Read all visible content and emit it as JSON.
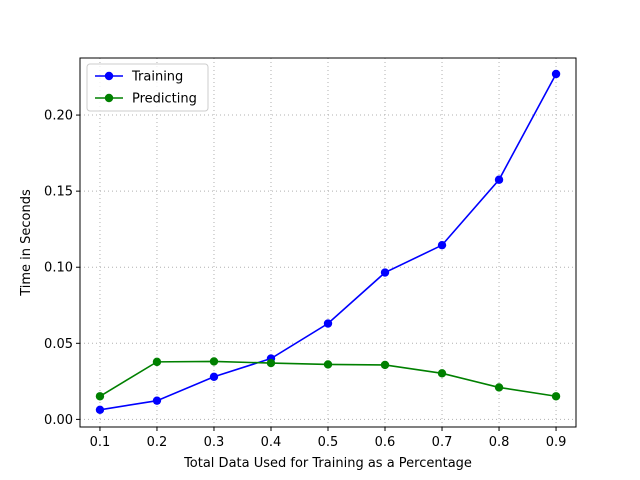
{
  "chart_data": {
    "type": "line",
    "title": "",
    "xlabel": "Total Data Used for Training as a Percentage",
    "ylabel": "Time in Seconds",
    "x": [
      0.1,
      0.2,
      0.3,
      0.4,
      0.5,
      0.6,
      0.7,
      0.8,
      0.9
    ],
    "xlim": [
      0.065,
      0.935
    ],
    "ylim": [
      -0.005,
      0.2375
    ],
    "xticks": [
      0.1,
      0.2,
      0.3,
      0.4,
      0.5,
      0.6,
      0.7,
      0.8,
      0.9
    ],
    "xtick_labels": [
      "0.1",
      "0.2",
      "0.3",
      "0.4",
      "0.5",
      "0.6",
      "0.7",
      "0.8",
      "0.9"
    ],
    "yticks": [
      0.0,
      0.05,
      0.1,
      0.15,
      0.2
    ],
    "ytick_labels": [
      "0.00",
      "0.05",
      "0.10",
      "0.15",
      "0.20"
    ],
    "grid": true,
    "legend_position": "top-left",
    "series": [
      {
        "name": "Training",
        "color": "#0000ff",
        "marker": "circle",
        "values": [
          0.0063,
          0.0123,
          0.028,
          0.04,
          0.063,
          0.0965,
          0.1145,
          0.1575,
          0.227
        ]
      },
      {
        "name": "Predicting",
        "color": "#008000",
        "marker": "circle",
        "values": [
          0.0152,
          0.0378,
          0.0381,
          0.037,
          0.0361,
          0.0358,
          0.0303,
          0.021,
          0.0152
        ]
      }
    ]
  }
}
